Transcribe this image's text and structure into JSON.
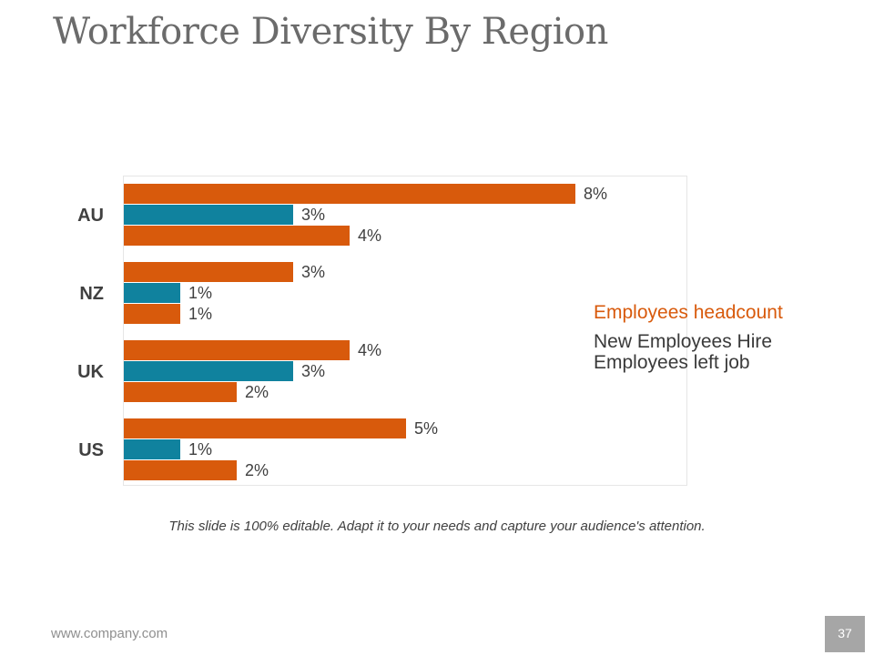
{
  "slide": {
    "title": "Workforce Diversity By Region",
    "caption": "This slide is 100% editable. Adapt it to your needs and capture your audience's attention.",
    "footer_url": "www.company.com",
    "page_number": "37"
  },
  "colors": {
    "headcount": "#d85a0c",
    "new_hire": "#10829e",
    "left_job": "#d85a0c"
  },
  "chart_data": {
    "type": "bar",
    "orientation": "horizontal",
    "title": "",
    "categories": [
      "AU",
      "NZ",
      "UK",
      "US"
    ],
    "series": [
      {
        "name": "Employees headcount",
        "values": [
          8,
          3,
          4,
          5
        ],
        "labels": [
          "8%",
          "3%",
          "4%",
          "5%"
        ]
      },
      {
        "name": "New Employees Hire",
        "values": [
          3,
          1,
          3,
          1
        ],
        "labels": [
          "3%",
          "1%",
          "3%",
          "1%"
        ]
      },
      {
        "name": "Employees left job",
        "values": [
          4,
          1,
          2,
          2
        ],
        "labels": [
          "4%",
          "1%",
          "2%",
          "2%"
        ]
      }
    ],
    "xlim": [
      0,
      10
    ],
    "unit": "%",
    "gridlines": false,
    "legend": [
      "Employees headcount",
      "New Employees Hire",
      "Employees left job"
    ],
    "legend_position": "right"
  }
}
